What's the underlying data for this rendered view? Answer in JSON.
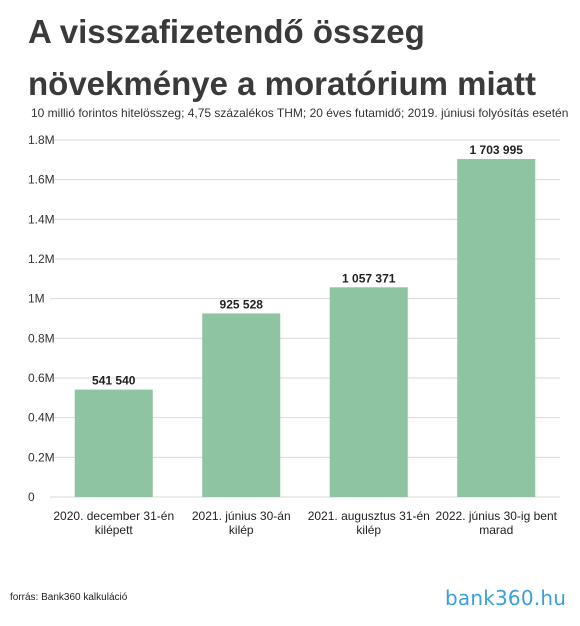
{
  "header": {
    "title": "A visszafizetendő összeg növekménye a moratórium miatt",
    "subtitle": "10 millió forintos hitelösszeg; 4,75 százalékos THM; 20 éves futamidő; 2019. júniusi folyósítás esetén"
  },
  "footer": {
    "source": "forrás: Bank360 kalkuláció",
    "logo": "bank360.hu"
  },
  "colors": {
    "bar": "#8fc4a2",
    "grid": "#d9d9d9",
    "axis_text": "#333333",
    "logo": "#3aa0d8"
  },
  "chart_data": {
    "type": "bar",
    "title": "A visszafizetendő összeg növekménye a moratórium miatt",
    "subtitle": "10 millió forintos hitelösszeg; 4,75 százalékos THM; 20 éves futamidő; 2019. júniusi folyósítás esetén",
    "categories": [
      [
        "2020. december 31-én",
        "kilépett"
      ],
      [
        "2021. június 30-án",
        "kilép"
      ],
      [
        "2021. augusztus 31-én",
        "kilép"
      ],
      [
        "2022. június 30-ig bent",
        "marad"
      ]
    ],
    "values": [
      541540,
      925528,
      1057371,
      1703995
    ],
    "value_labels": [
      "541 540",
      "925 528",
      "1 057 371",
      "1 703 995"
    ],
    "ylim": [
      0,
      1800000
    ],
    "yticks": [
      0,
      200000,
      400000,
      600000,
      800000,
      1000000,
      1200000,
      1400000,
      1600000,
      1800000
    ],
    "ytick_labels": [
      "0",
      "0.2M",
      "0.4M",
      "0.6M",
      "0.8M",
      "1M",
      "1.2M",
      "1.4M",
      "1.6M",
      "1.8M"
    ],
    "grid": true,
    "legend": "none",
    "xlabel": "",
    "ylabel": ""
  }
}
